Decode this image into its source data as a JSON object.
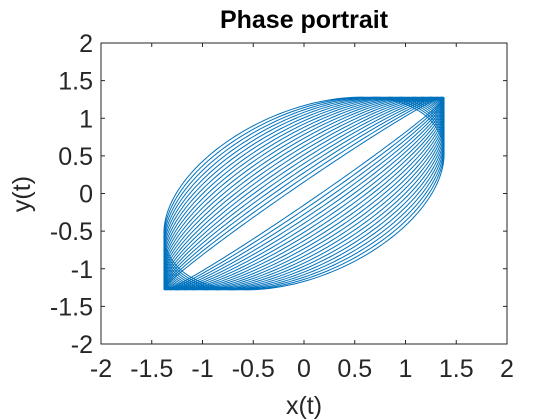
{
  "chart_data": {
    "type": "line",
    "title": "Phase portrait",
    "xlabel": "x(t)",
    "ylabel": "y(t)",
    "xlim": [
      -2,
      2
    ],
    "ylim": [
      -2,
      2
    ],
    "xticks": [
      -2,
      -1.5,
      -1,
      -0.5,
      0,
      0.5,
      1,
      1.5,
      2
    ],
    "yticks": [
      -2,
      -1.5,
      -1,
      -0.5,
      0,
      0.5,
      1,
      1.5,
      2
    ],
    "xtick_labels": [
      "-2",
      "-1.5",
      "-1",
      "-0.5",
      "0",
      "0.5",
      "1",
      "1.5",
      "2"
    ],
    "ytick_labels": [
      "-2",
      "-1.5",
      "-1",
      "-0.5",
      "0",
      "0.5",
      "1",
      "1.5",
      "2"
    ],
    "grid": false,
    "box": true,
    "series": [
      {
        "color": "#0072BD",
        "line_width": 1,
        "x_amplitude": 1.38,
        "y_amplitude": 1.28,
        "phase_offset_min": 0.12,
        "phase_offset_max": 1.15,
        "orbit_count": 22
      }
    ]
  }
}
